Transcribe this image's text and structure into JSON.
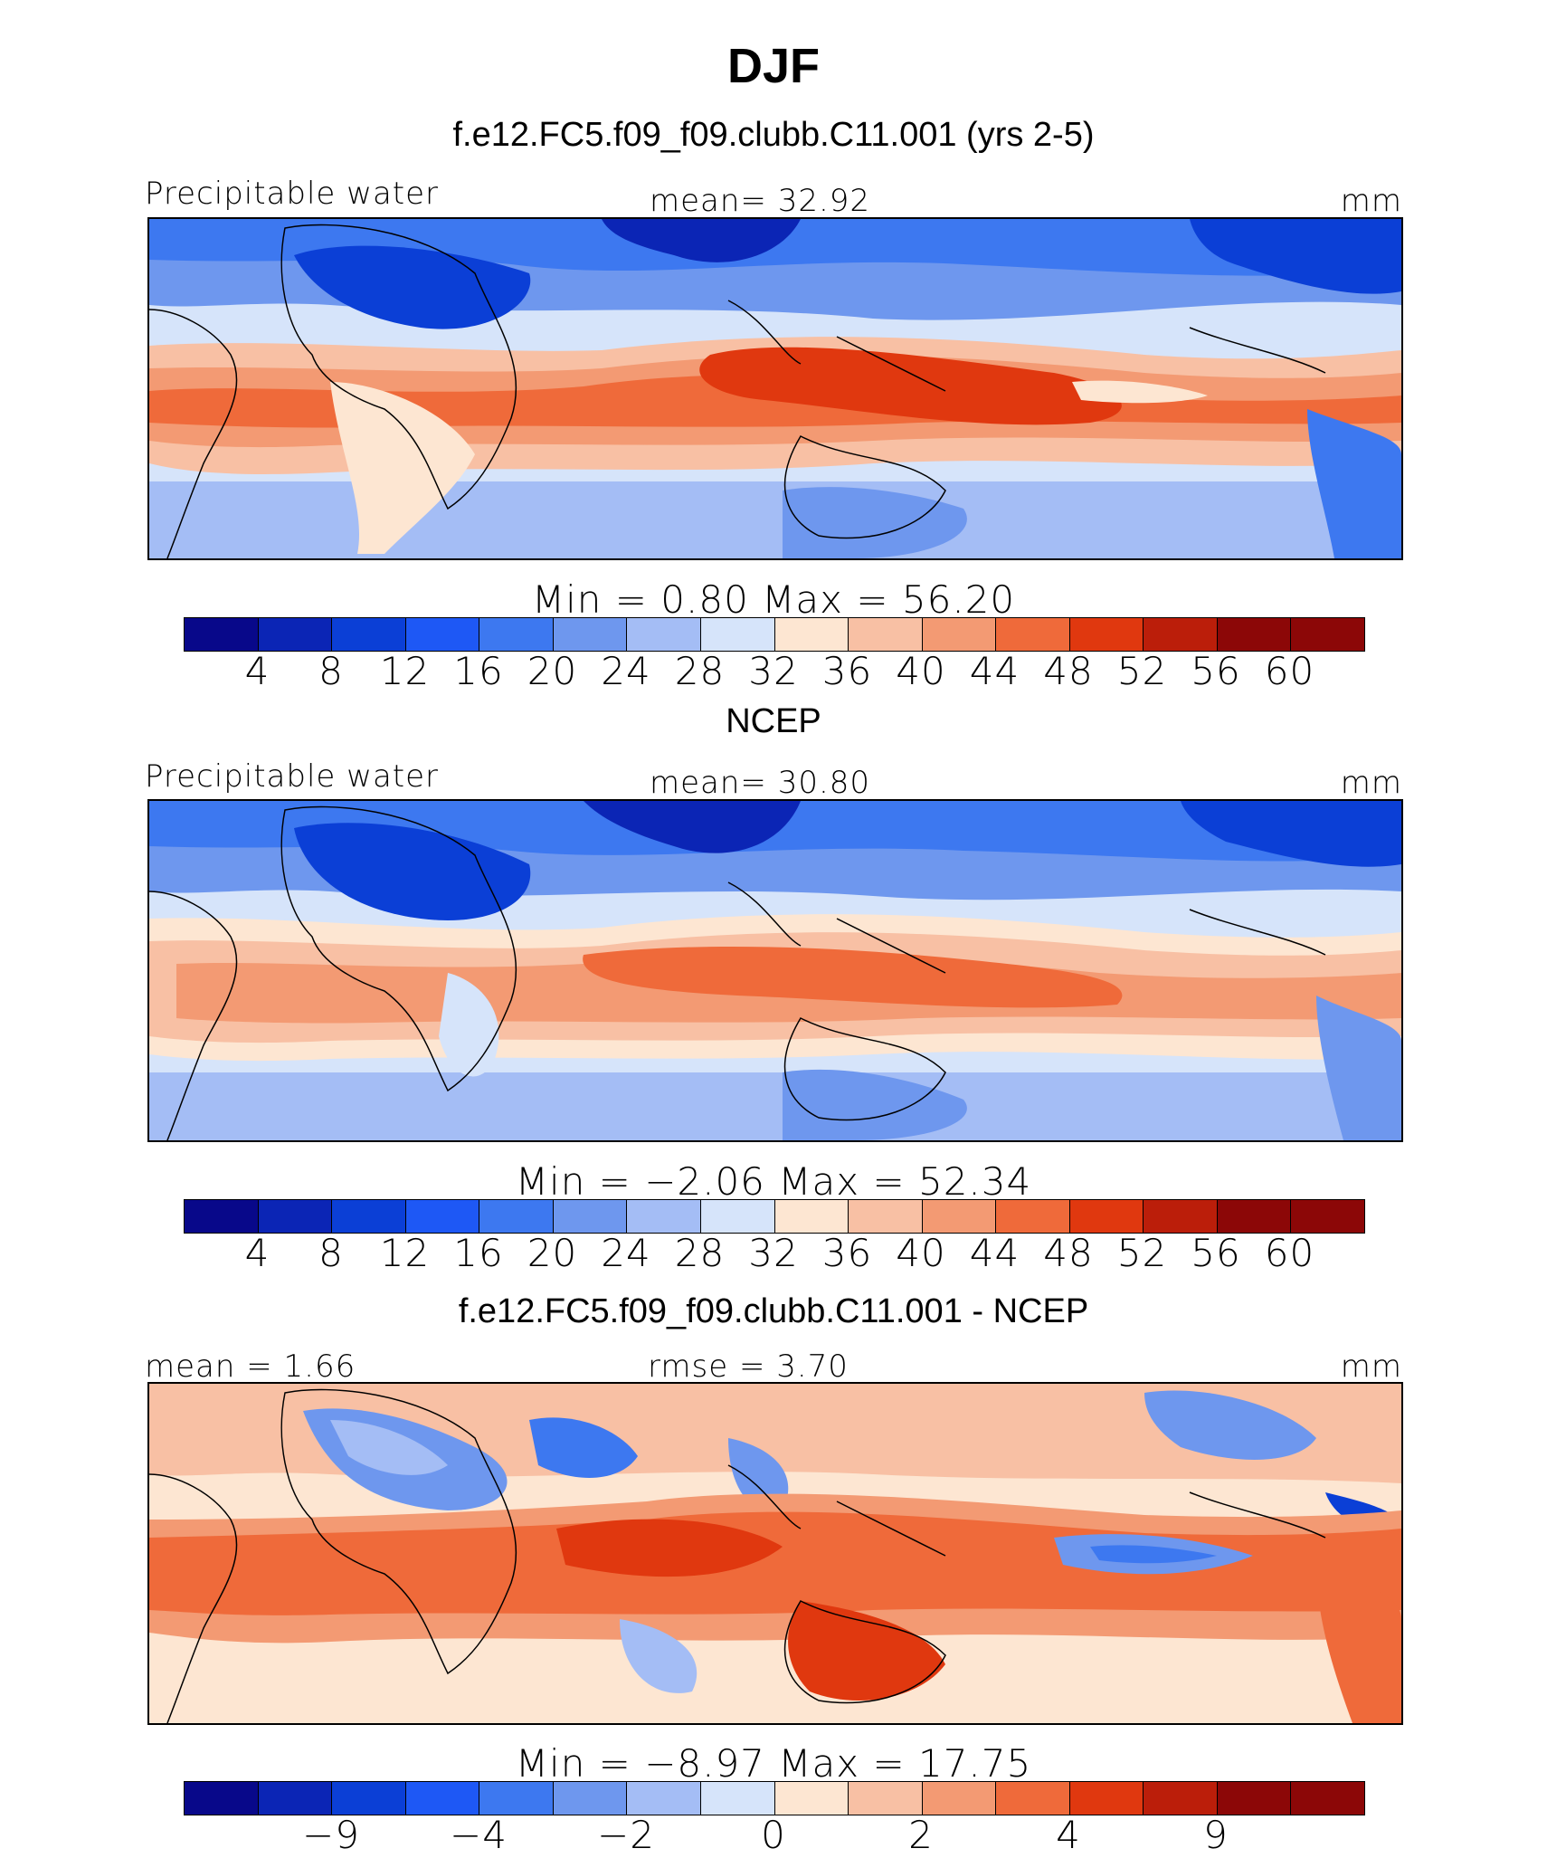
{
  "figure": {
    "season": "DJF",
    "units": "mm",
    "palette": [
      "#08088a",
      "#0b25b5",
      "#0b3fd6",
      "#1e58f5",
      "#3d78f0",
      "#6e97ee",
      "#a4bdf5",
      "#d6e4fa",
      "#fde6d2",
      "#f8c0a4",
      "#f39a73",
      "#ef6a3a",
      "#e0380f",
      "#bb1e0a",
      "#8c0707"
    ]
  },
  "panels": [
    {
      "title": "f.e12.FC5.f09_f09.clubb.C11.001 (yrs 2-5)",
      "left_label": "Precipitable water",
      "mid_label": "mean=   32.92",
      "right_label": "mm",
      "minmax": "Min  =     0.80  Max  =    56.20",
      "ticks": [
        "4",
        "8",
        "12",
        "16",
        "20",
        "24",
        "28",
        "32",
        "36",
        "40",
        "44",
        "48",
        "52",
        "56",
        "60"
      ]
    },
    {
      "title": "NCEP",
      "left_label": "Precipitable water",
      "mid_label": "mean=   30.80",
      "right_label": "mm",
      "minmax": "Min  =   −2.06  Max  =    52.34",
      "ticks": [
        "4",
        "8",
        "12",
        "16",
        "20",
        "24",
        "28",
        "32",
        "36",
        "40",
        "44",
        "48",
        "52",
        "56",
        "60"
      ]
    },
    {
      "title": "f.e12.FC5.f09_f09.clubb.C11.001 - NCEP",
      "left_label": "mean =    1.66",
      "mid_label": "rmse =    3.70",
      "right_label": "mm",
      "minmax": "Min  =   −8.97  Max  =   17.75",
      "ticks": [
        "−9",
        "−4",
        "−2",
        "0",
        "2",
        "4",
        "9"
      ]
    }
  ]
}
